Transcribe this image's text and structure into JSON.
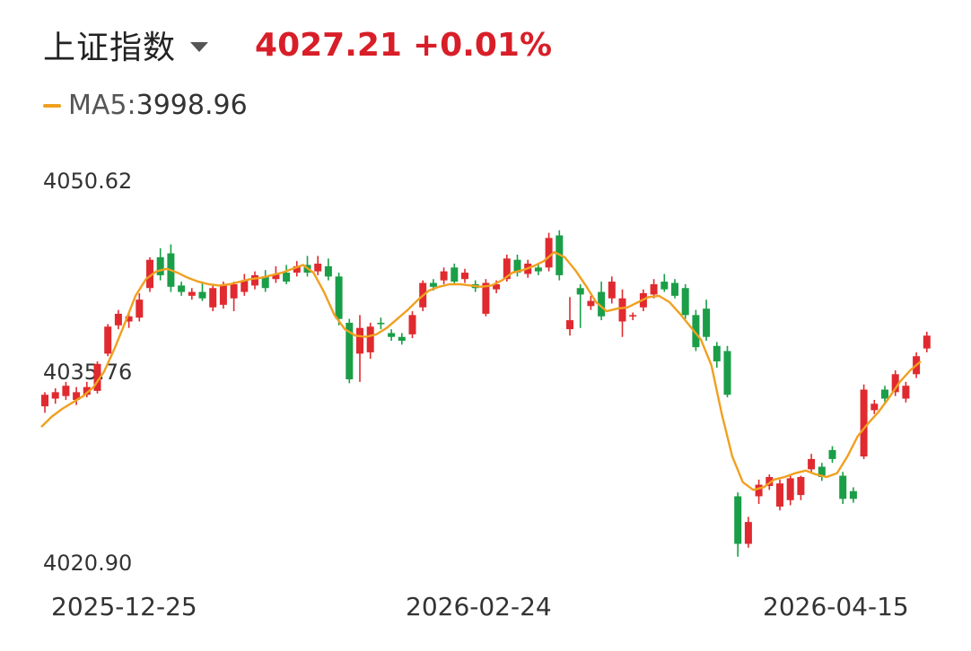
{
  "header": {
    "index_name": "上证指数",
    "price": "4027.21",
    "change": "+0.01%"
  },
  "ma": {
    "label": "MA5:",
    "value": "3998.96"
  },
  "colors": {
    "up": "#e02a2f",
    "down": "#1a9e48",
    "ma": "#f0a020",
    "header_price": "#d81e28"
  },
  "chart_data": {
    "type": "candlestick",
    "title": "",
    "y_axis_labels": [
      "4050.62",
      "4035.76",
      "4020.90"
    ],
    "ylim": [
      4020.9,
      4050.62
    ],
    "x_axis_labels": [
      "2025-12-25",
      "2026-02-24",
      "2026-04-15"
    ],
    "grid": false,
    "series": [
      {
        "name": "K",
        "ohlc": [
          [
            4033.1,
            4034.0,
            4032.6,
            4034.2
          ],
          [
            4033.7,
            4034.2,
            4033.3,
            4034.5
          ],
          [
            4033.9,
            4034.7,
            4033.6,
            4035.0
          ],
          [
            4033.6,
            4034.2,
            4033.2,
            4034.6
          ],
          [
            4034.0,
            4034.6,
            4033.8,
            4035.0
          ],
          [
            4034.3,
            4036.4,
            4034.1,
            4036.6
          ],
          [
            4037.2,
            4039.3,
            4037.0,
            4039.5
          ],
          [
            4039.4,
            4040.3,
            4039.1,
            4040.6
          ],
          [
            4039.7,
            4040.1,
            4039.2,
            4040.4
          ],
          [
            4040.0,
            4041.4,
            4039.7,
            4041.9
          ],
          [
            4042.3,
            4044.5,
            4042.0,
            4044.7
          ],
          [
            4044.7,
            4043.3,
            4042.9,
            4045.4
          ],
          [
            4045.0,
            4042.4,
            4042.0,
            4045.7
          ],
          [
            4042.5,
            4042.0,
            4041.7,
            4042.8
          ],
          [
            4041.7,
            4042.0,
            4041.4,
            4042.3
          ],
          [
            4042.0,
            4041.5,
            4041.3,
            4042.8
          ],
          [
            4040.8,
            4042.3,
            4040.5,
            4042.6
          ],
          [
            4041.0,
            4042.5,
            4040.7,
            4042.8
          ],
          [
            4041.5,
            4042.6,
            4040.5,
            4042.8
          ],
          [
            4042.0,
            4042.9,
            4041.7,
            4043.4
          ],
          [
            4042.5,
            4043.3,
            4042.2,
            4043.6
          ],
          [
            4043.2,
            4042.3,
            4042.0,
            4043.7
          ],
          [
            4043.0,
            4043.4,
            4042.7,
            4044.0
          ],
          [
            4043.5,
            4042.8,
            4042.6,
            4044.1
          ],
          [
            4043.5,
            4044.0,
            4043.2,
            4044.4
          ],
          [
            4044.1,
            4043.5,
            4043.2,
            4044.8
          ],
          [
            4043.6,
            4044.2,
            4043.3,
            4044.8
          ],
          [
            4044.0,
            4043.2,
            4042.9,
            4044.6
          ],
          [
            4043.2,
            4039.9,
            4039.4,
            4043.5
          ],
          [
            4039.6,
            4035.2,
            4034.9,
            4039.9
          ],
          [
            4037.2,
            4039.2,
            4035.0,
            4040.2
          ],
          [
            4037.3,
            4039.3,
            4036.8,
            4039.6
          ],
          [
            4039.6,
            4039.5,
            4039.1,
            4040.0
          ],
          [
            4038.8,
            4038.5,
            4038.2,
            4039.1
          ],
          [
            4038.5,
            4038.2,
            4037.9,
            4038.8
          ],
          [
            4038.7,
            4040.2,
            4038.4,
            4040.5
          ],
          [
            4040.8,
            4042.7,
            4040.5,
            4042.9
          ],
          [
            4042.7,
            4042.4,
            4042.1,
            4043.0
          ],
          [
            4042.9,
            4043.6,
            4042.6,
            4043.9
          ],
          [
            4043.9,
            4042.8,
            4042.6,
            4044.2
          ],
          [
            4043.0,
            4043.5,
            4042.7,
            4043.8
          ],
          [
            4042.6,
            4042.3,
            4042.0,
            4042.9
          ],
          [
            4040.3,
            4042.7,
            4040.1,
            4043.0
          ],
          [
            4042.2,
            4042.6,
            4041.9,
            4042.9
          ],
          [
            4043.0,
            4044.6,
            4042.8,
            4044.9
          ],
          [
            4044.5,
            4043.5,
            4043.2,
            4044.9
          ],
          [
            4043.4,
            4044.2,
            4043.1,
            4044.5
          ],
          [
            4043.9,
            4043.6,
            4043.3,
            4044.2
          ],
          [
            4043.9,
            4046.2,
            4043.6,
            4046.6
          ],
          [
            4046.4,
            4043.3,
            4042.9,
            4046.8
          ],
          [
            4039.1,
            4039.8,
            4038.6,
            4041.6
          ],
          [
            4042.3,
            4041.8,
            4039.2,
            4042.6
          ],
          [
            4040.9,
            4041.3,
            4040.6,
            4041.7
          ],
          [
            4042.0,
            4040.1,
            4039.8,
            4042.8
          ],
          [
            4041.5,
            4042.8,
            4041.1,
            4043.2
          ],
          [
            4039.7,
            4041.5,
            4038.5,
            4042.2
          ],
          [
            4040.1,
            4040.2,
            4039.8,
            4040.4
          ],
          [
            4040.8,
            4041.9,
            4040.5,
            4042.2
          ],
          [
            4041.8,
            4042.6,
            4041.5,
            4043.0
          ],
          [
            4042.8,
            4042.2,
            4042.0,
            4043.4
          ],
          [
            4042.7,
            4041.7,
            4041.5,
            4043.0
          ],
          [
            4042.3,
            4040.2,
            4039.9,
            4042.6
          ],
          [
            4040.2,
            4037.7,
            4037.4,
            4040.6
          ],
          [
            4040.7,
            4038.5,
            4038.2,
            4041.4
          ],
          [
            4037.8,
            4036.6,
            4036.1,
            4038.1
          ],
          [
            4037.4,
            4034.0,
            4033.8,
            4037.8
          ],
          [
            4026.1,
            4022.4,
            4021.4,
            4026.4
          ],
          [
            4022.4,
            4024.1,
            4022.1,
            4024.5
          ],
          [
            4026.1,
            4027.0,
            4025.5,
            4027.4
          ],
          [
            4026.9,
            4027.6,
            4026.6,
            4027.8
          ],
          [
            4025.3,
            4027.1,
            4025.0,
            4027.4
          ],
          [
            4025.8,
            4027.5,
            4025.4,
            4027.8
          ],
          [
            4026.2,
            4027.6,
            4025.8,
            4027.7
          ],
          [
            4028.2,
            4029.0,
            4027.9,
            4029.4
          ],
          [
            4028.4,
            4027.6,
            4027.3,
            4028.7
          ],
          [
            4029.7,
            4029.0,
            4028.7,
            4030.0
          ],
          [
            4027.7,
            4025.9,
            4025.5,
            4028.0
          ],
          [
            4026.5,
            4025.9,
            4025.6,
            4026.8
          ],
          [
            4029.2,
            4034.4,
            4029.0,
            4034.8
          ],
          [
            4032.8,
            4033.3,
            4032.5,
            4033.6
          ],
          [
            4034.4,
            4033.7,
            4033.4,
            4034.7
          ],
          [
            4034.2,
            4035.6,
            4033.9,
            4035.9
          ],
          [
            4033.7,
            4034.7,
            4033.4,
            4035.0
          ],
          [
            4035.6,
            4037.0,
            4035.3,
            4037.3
          ],
          [
            4037.6,
            4038.6,
            4037.3,
            4038.9
          ]
        ]
      },
      {
        "name": "MA5",
        "values": [
          4031.5,
          4032.3,
          4032.9,
          4033.4,
          4033.9,
          4034.6,
          4035.8,
          4037.6,
          4039.6,
          4041.7,
          4043.0,
          4043.6,
          4043.8,
          4043.5,
          4043.1,
          4042.8,
          4042.6,
          4042.5,
          4042.6,
          4042.8,
          4043.0,
          4043.1,
          4043.3,
          4043.5,
          4043.8,
          4044.1,
          4043.5,
          4042.0,
          4040.2,
          4039.1,
          4038.6,
          4038.5,
          4038.7,
          4039.2,
          4039.9,
          4040.6,
          4041.4,
          4042.1,
          4042.4,
          4042.6,
          4042.6,
          4042.5,
          4042.4,
          4042.5,
          4042.9,
          4043.5,
          4043.7,
          4044.0,
          4044.4,
          4045.1,
          4044.7,
          4043.7,
          4042.5,
          4041.2,
          4040.5,
          4040.7,
          4040.8,
          4041.2,
          4041.6,
          4041.7,
          4041.2,
          4040.3,
          4039.3,
          4038.3,
          4036.3,
          4032.5,
          4029.2,
          4027.2,
          4026.6,
          4026.8,
          4027.4,
          4027.6,
          4027.9,
          4028.1,
          4027.8,
          4027.6,
          4027.9,
          4029.2,
          4030.8,
          4031.8,
          4032.7,
          4033.8,
          4035.0,
          4035.9,
          4036.6
        ]
      }
    ]
  }
}
